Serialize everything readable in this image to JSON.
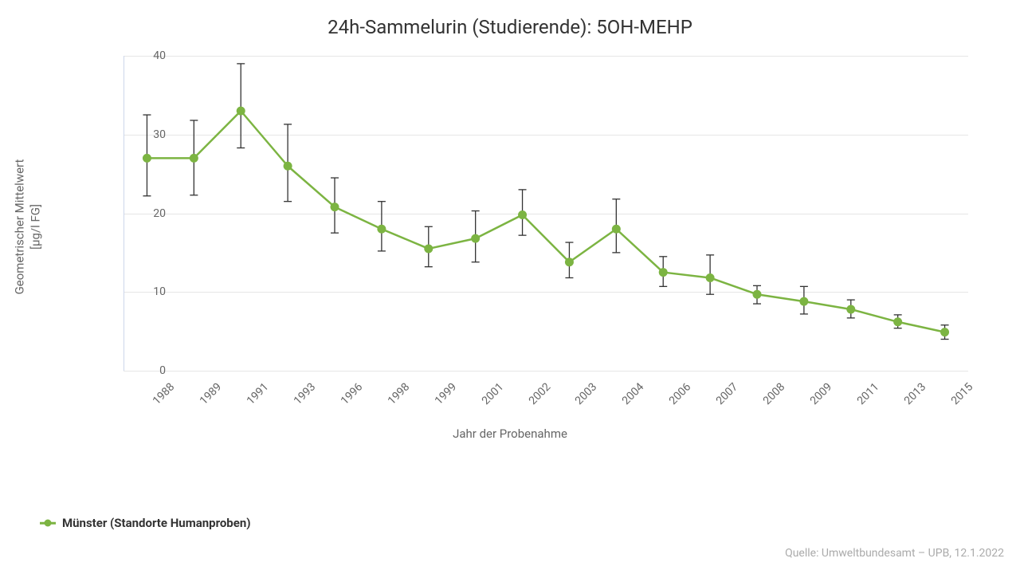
{
  "chart": {
    "type": "line-with-errorbars",
    "title": "24h-Sammelurin (Studierende): 5OH-MEHP",
    "xlabel": "Jahr der Probenahme",
    "ylabel_line1": "Geometrischer Mittelwert",
    "ylabel_line2": "[µg/l FG]",
    "ylim": [
      0,
      40
    ],
    "ytick_step": 10,
    "yticks": [
      0,
      10,
      20,
      30,
      40
    ],
    "x_categories": [
      "1988",
      "1989",
      "1991",
      "1993",
      "1996",
      "1998",
      "1999",
      "2001",
      "2002",
      "2003",
      "2004",
      "2006",
      "2007",
      "2008",
      "2009",
      "2011",
      "2013",
      "2015"
    ],
    "series": {
      "name": "Münster (Standorte Humanproben)",
      "color": "#7cb442",
      "line_width": 2.5,
      "marker_radius": 5.5,
      "error_color": "#333333",
      "error_cap_width": 10,
      "points": [
        {
          "y": 27.0,
          "lo": 22.2,
          "hi": 32.5
        },
        {
          "y": 27.0,
          "lo": 22.3,
          "hi": 31.8
        },
        {
          "y": 33.0,
          "lo": 28.3,
          "hi": 39.0
        },
        {
          "y": 26.0,
          "lo": 21.5,
          "hi": 31.3
        },
        {
          "y": 20.8,
          "lo": 17.5,
          "hi": 24.5
        },
        {
          "y": 18.0,
          "lo": 15.2,
          "hi": 21.5
        },
        {
          "y": 15.5,
          "lo": 13.2,
          "hi": 18.3
        },
        {
          "y": 16.8,
          "lo": 13.8,
          "hi": 20.3
        },
        {
          "y": 19.8,
          "lo": 17.2,
          "hi": 23.0
        },
        {
          "y": 13.8,
          "lo": 11.8,
          "hi": 16.3
        },
        {
          "y": 18.0,
          "lo": 15.0,
          "hi": 21.8
        },
        {
          "y": 12.5,
          "lo": 10.7,
          "hi": 14.5
        },
        {
          "y": 11.8,
          "lo": 9.7,
          "hi": 14.7
        },
        {
          "y": 9.7,
          "lo": 8.5,
          "hi": 10.8
        },
        {
          "y": 8.8,
          "lo": 7.2,
          "hi": 10.7
        },
        {
          "y": 7.8,
          "lo": 6.7,
          "hi": 9.0
        },
        {
          "y": 6.2,
          "lo": 5.4,
          "hi": 7.1
        },
        {
          "y": 4.9,
          "lo": 4.0,
          "hi": 5.8
        }
      ]
    },
    "background_color": "#ffffff",
    "grid_color": "#e6e6e6",
    "source": "Quelle: Umweltbundesamt – UPB, 12.1.2022",
    "title_fontsize": 24,
    "label_fontsize": 15,
    "tick_fontsize": 14
  }
}
